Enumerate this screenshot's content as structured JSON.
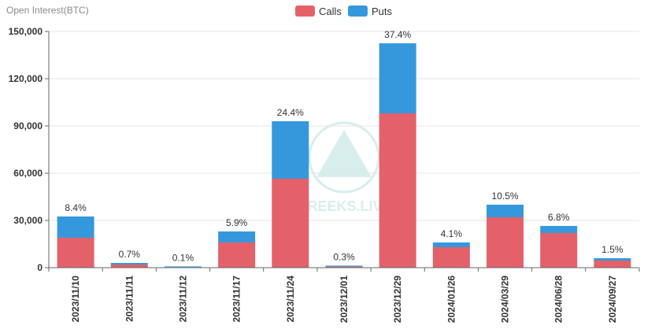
{
  "colors": {
    "calls": "#e5616a",
    "puts": "#3698dc",
    "axis": "#666666",
    "grid": "#e6e6e6"
  },
  "chart_data": {
    "type": "bar",
    "stacked": true,
    "ylabel": "Open Interest(BTC)",
    "ylim": [
      0,
      150000
    ],
    "yticks": [
      "0",
      "30,000",
      "60,000",
      "90,000",
      "120,000",
      "150,000"
    ],
    "ytick_values": [
      0,
      30000,
      60000,
      90000,
      120000,
      150000
    ],
    "legend": {
      "placement": "top-center"
    },
    "categories": [
      "2023/11/10",
      "2023/11/11",
      "2023/11/12",
      "2023/11/17",
      "2023/11/24",
      "2023/12/01",
      "2023/12/29",
      "2024/01/26",
      "2024/03/29",
      "2024/06/28",
      "2024/09/27"
    ],
    "series": [
      {
        "name": "Calls",
        "values": [
          19000,
          2000,
          300,
          16000,
          56500,
          700,
          98000,
          13000,
          32000,
          22000,
          4500
        ]
      },
      {
        "name": "Puts",
        "values": [
          13500,
          1000,
          500,
          7000,
          36500,
          600,
          44500,
          3000,
          8000,
          4500,
          1500
        ]
      }
    ],
    "labels": [
      "8.4%",
      "0.7%",
      "0.1%",
      "5.9%",
      "24.4%",
      "0.3%",
      "37.4%",
      "4.1%",
      "10.5%",
      "6.8%",
      "1.5%"
    ]
  },
  "watermark": "GREEKS.LIVE"
}
